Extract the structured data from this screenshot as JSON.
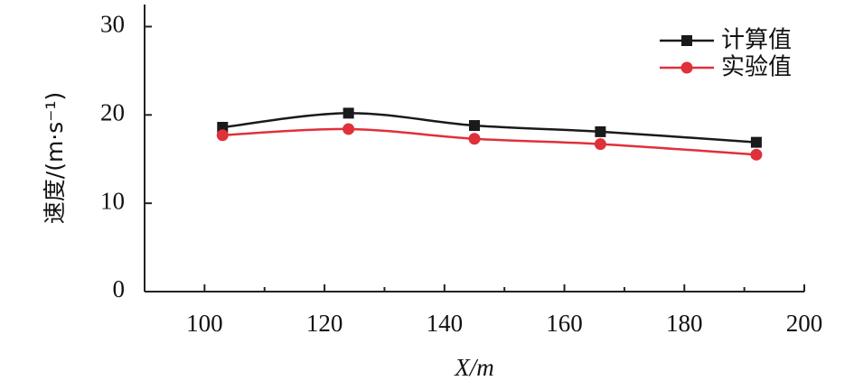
{
  "chart_data": {
    "type": "line",
    "x_label": "X/m",
    "y_label": "速度/(m·s⁻¹)",
    "x": [
      103,
      124,
      145,
      166,
      192
    ],
    "series": [
      {
        "name": "计算值",
        "color": "#1a1a1a",
        "marker": "square",
        "values": [
          18.6,
          20.2,
          18.8,
          18.1,
          16.9
        ]
      },
      {
        "name": "实验值",
        "color": "#e0303a",
        "marker": "circle",
        "values": [
          17.7,
          18.4,
          17.3,
          16.7,
          15.5
        ]
      }
    ],
    "xlim": [
      90,
      200
    ],
    "xticks": [
      100,
      120,
      140,
      160,
      180,
      200
    ],
    "xminorticks": [
      110,
      130,
      150,
      170,
      190
    ],
    "ylim": [
      0,
      32.5
    ],
    "yticks": [
      0,
      10,
      20,
      30
    ],
    "legend": "upper right",
    "smooth": true
  }
}
